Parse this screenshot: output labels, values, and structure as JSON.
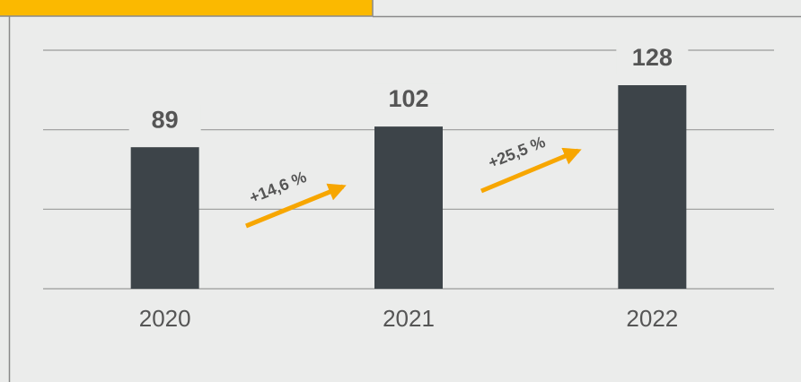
{
  "chart_data": {
    "type": "bar",
    "categories": [
      "2020",
      "2021",
      "2022"
    ],
    "values": [
      89,
      102,
      128
    ],
    "color": "#3d4449",
    "ylim": [
      0,
      150
    ],
    "yticks": [
      0,
      50,
      100,
      150
    ],
    "grid": true,
    "annotations": [
      {
        "text": "+14,6 %",
        "color": "#f7a600"
      },
      {
        "text": "+25,5 %",
        "color": "#f7a600"
      }
    ]
  }
}
